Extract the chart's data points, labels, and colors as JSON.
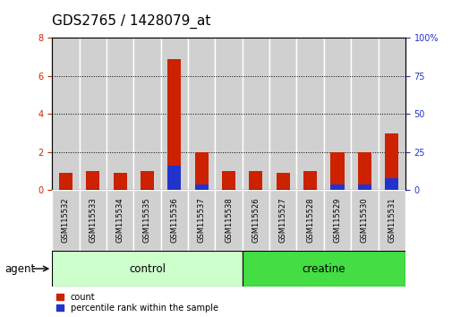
{
  "title": "GDS2765 / 1428079_at",
  "categories": [
    "GSM115532",
    "GSM115533",
    "GSM115534",
    "GSM115535",
    "GSM115536",
    "GSM115537",
    "GSM115538",
    "GSM115526",
    "GSM115527",
    "GSM115528",
    "GSM115529",
    "GSM115530",
    "GSM115531"
  ],
  "count_values": [
    0.9,
    1.0,
    0.9,
    1.0,
    6.9,
    2.0,
    1.0,
    1.0,
    0.9,
    1.0,
    2.0,
    2.0,
    3.0
  ],
  "percentile_values": [
    0.05,
    0.05,
    0.08,
    0.08,
    1.3,
    0.3,
    0.05,
    0.05,
    0.05,
    0.08,
    0.3,
    0.3,
    0.62
  ],
  "count_color": "#cc2200",
  "percentile_color": "#2233cc",
  "bar_bg_color": "#d0d0d0",
  "ylim_left": [
    0,
    8
  ],
  "ylim_right": [
    0,
    100
  ],
  "yticks_left": [
    0,
    2,
    4,
    6,
    8
  ],
  "yticks_right": [
    0,
    25,
    50,
    75,
    100
  ],
  "ytick_labels_right": [
    "0",
    "25",
    "50",
    "75",
    "100%"
  ],
  "group_labels": [
    "control",
    "creatine"
  ],
  "group_colors_light": "#ccffcc",
  "group_colors_dark": "#44dd44",
  "agent_label": "agent",
  "legend_count_label": "count",
  "legend_percentile_label": "percentile rank within the sample",
  "bar_width": 0.5,
  "bg_color": "#ffffff",
  "title_fontsize": 11,
  "tick_fontsize": 7,
  "label_fontsize": 8.5
}
